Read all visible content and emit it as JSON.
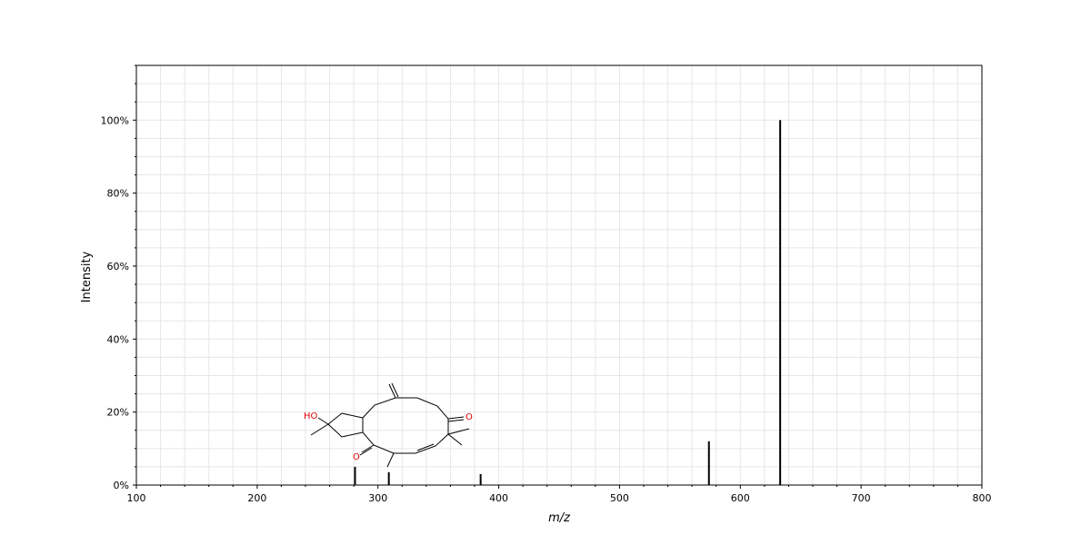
{
  "chart_data": {
    "type": "bar",
    "title": "",
    "xlabel": "m/z",
    "ylabel": "Intensity",
    "xlim": [
      100,
      800
    ],
    "ylim": [
      0,
      115
    ],
    "x_ticks": [
      "100",
      "200",
      "300",
      "400",
      "500",
      "600",
      "700",
      "800"
    ],
    "y_ticks": [
      "0%",
      "20%",
      "40%",
      "60%",
      "80%",
      "100%"
    ],
    "grid": true,
    "series": [
      {
        "peaks": [
          {
            "mz": 281,
            "intensity": 5
          },
          {
            "mz": 309,
            "intensity": 3.5
          },
          {
            "mz": 385,
            "intensity": 3
          },
          {
            "mz": 574,
            "intensity": 12
          },
          {
            "mz": 633,
            "intensity": 100
          }
        ]
      }
    ],
    "structure_labels": [
      "HO",
      "O",
      "O"
    ],
    "colors": {
      "peak": "#000000",
      "grid": "#e6e6e6",
      "heteroatom": "#e00000"
    }
  }
}
